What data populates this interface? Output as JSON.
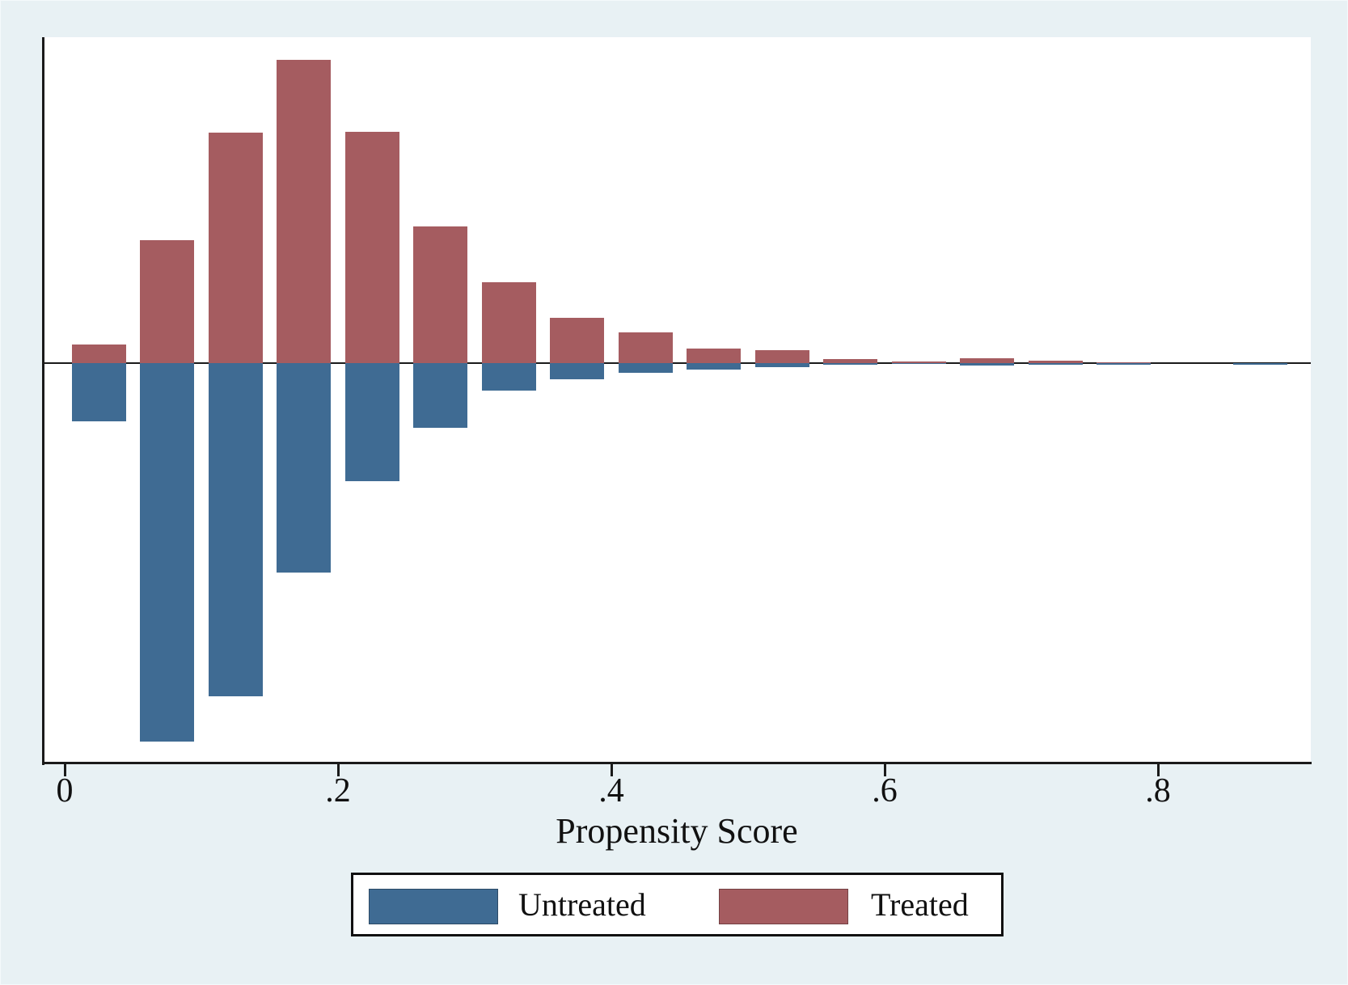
{
  "figure": {
    "background_color": "#e8f1f4",
    "plot_background_color": "#ffffff",
    "axis_color": "#1a1a1a"
  },
  "chart_data": {
    "type": "bar",
    "subtype": "mirrored-histogram",
    "title": "",
    "xlabel": "Propensity Score",
    "ylabel": "",
    "y_axis_visible": false,
    "xlim": [
      -0.016,
      0.912
    ],
    "ylim_density": [
      -6.5,
      5.3
    ],
    "x_ticks": [
      0,
      0.2,
      0.4,
      0.6,
      0.8
    ],
    "x_tick_labels": [
      "0",
      ".2",
      ".4",
      ".6",
      ".8"
    ],
    "bin_width": 0.05,
    "bar_width_data": 0.04,
    "grid": false,
    "legend_position": "bottom",
    "bin_centers": [
      0.025,
      0.075,
      0.125,
      0.175,
      0.225,
      0.275,
      0.325,
      0.375,
      0.425,
      0.475,
      0.525,
      0.575,
      0.625,
      0.675,
      0.725,
      0.775,
      0.825,
      0.875
    ],
    "series": [
      {
        "name": "Untreated",
        "direction": "down",
        "color": "#3f6b93",
        "values": [
          0.94,
          6.1,
          5.37,
          3.38,
          1.9,
          1.04,
          0.44,
          0.26,
          0.16,
          0.1,
          0.07,
          0.03,
          0.01,
          0.04,
          0.03,
          0.03,
          0,
          0.03
        ]
      },
      {
        "name": "Treated",
        "direction": "up",
        "color": "#a55c60",
        "values": [
          0.3,
          1.98,
          3.72,
          4.89,
          3.73,
          2.2,
          1.3,
          0.73,
          0.5,
          0.23,
          0.21,
          0.07,
          0.03,
          0.08,
          0.04,
          0.01,
          0,
          0
        ]
      }
    ]
  }
}
